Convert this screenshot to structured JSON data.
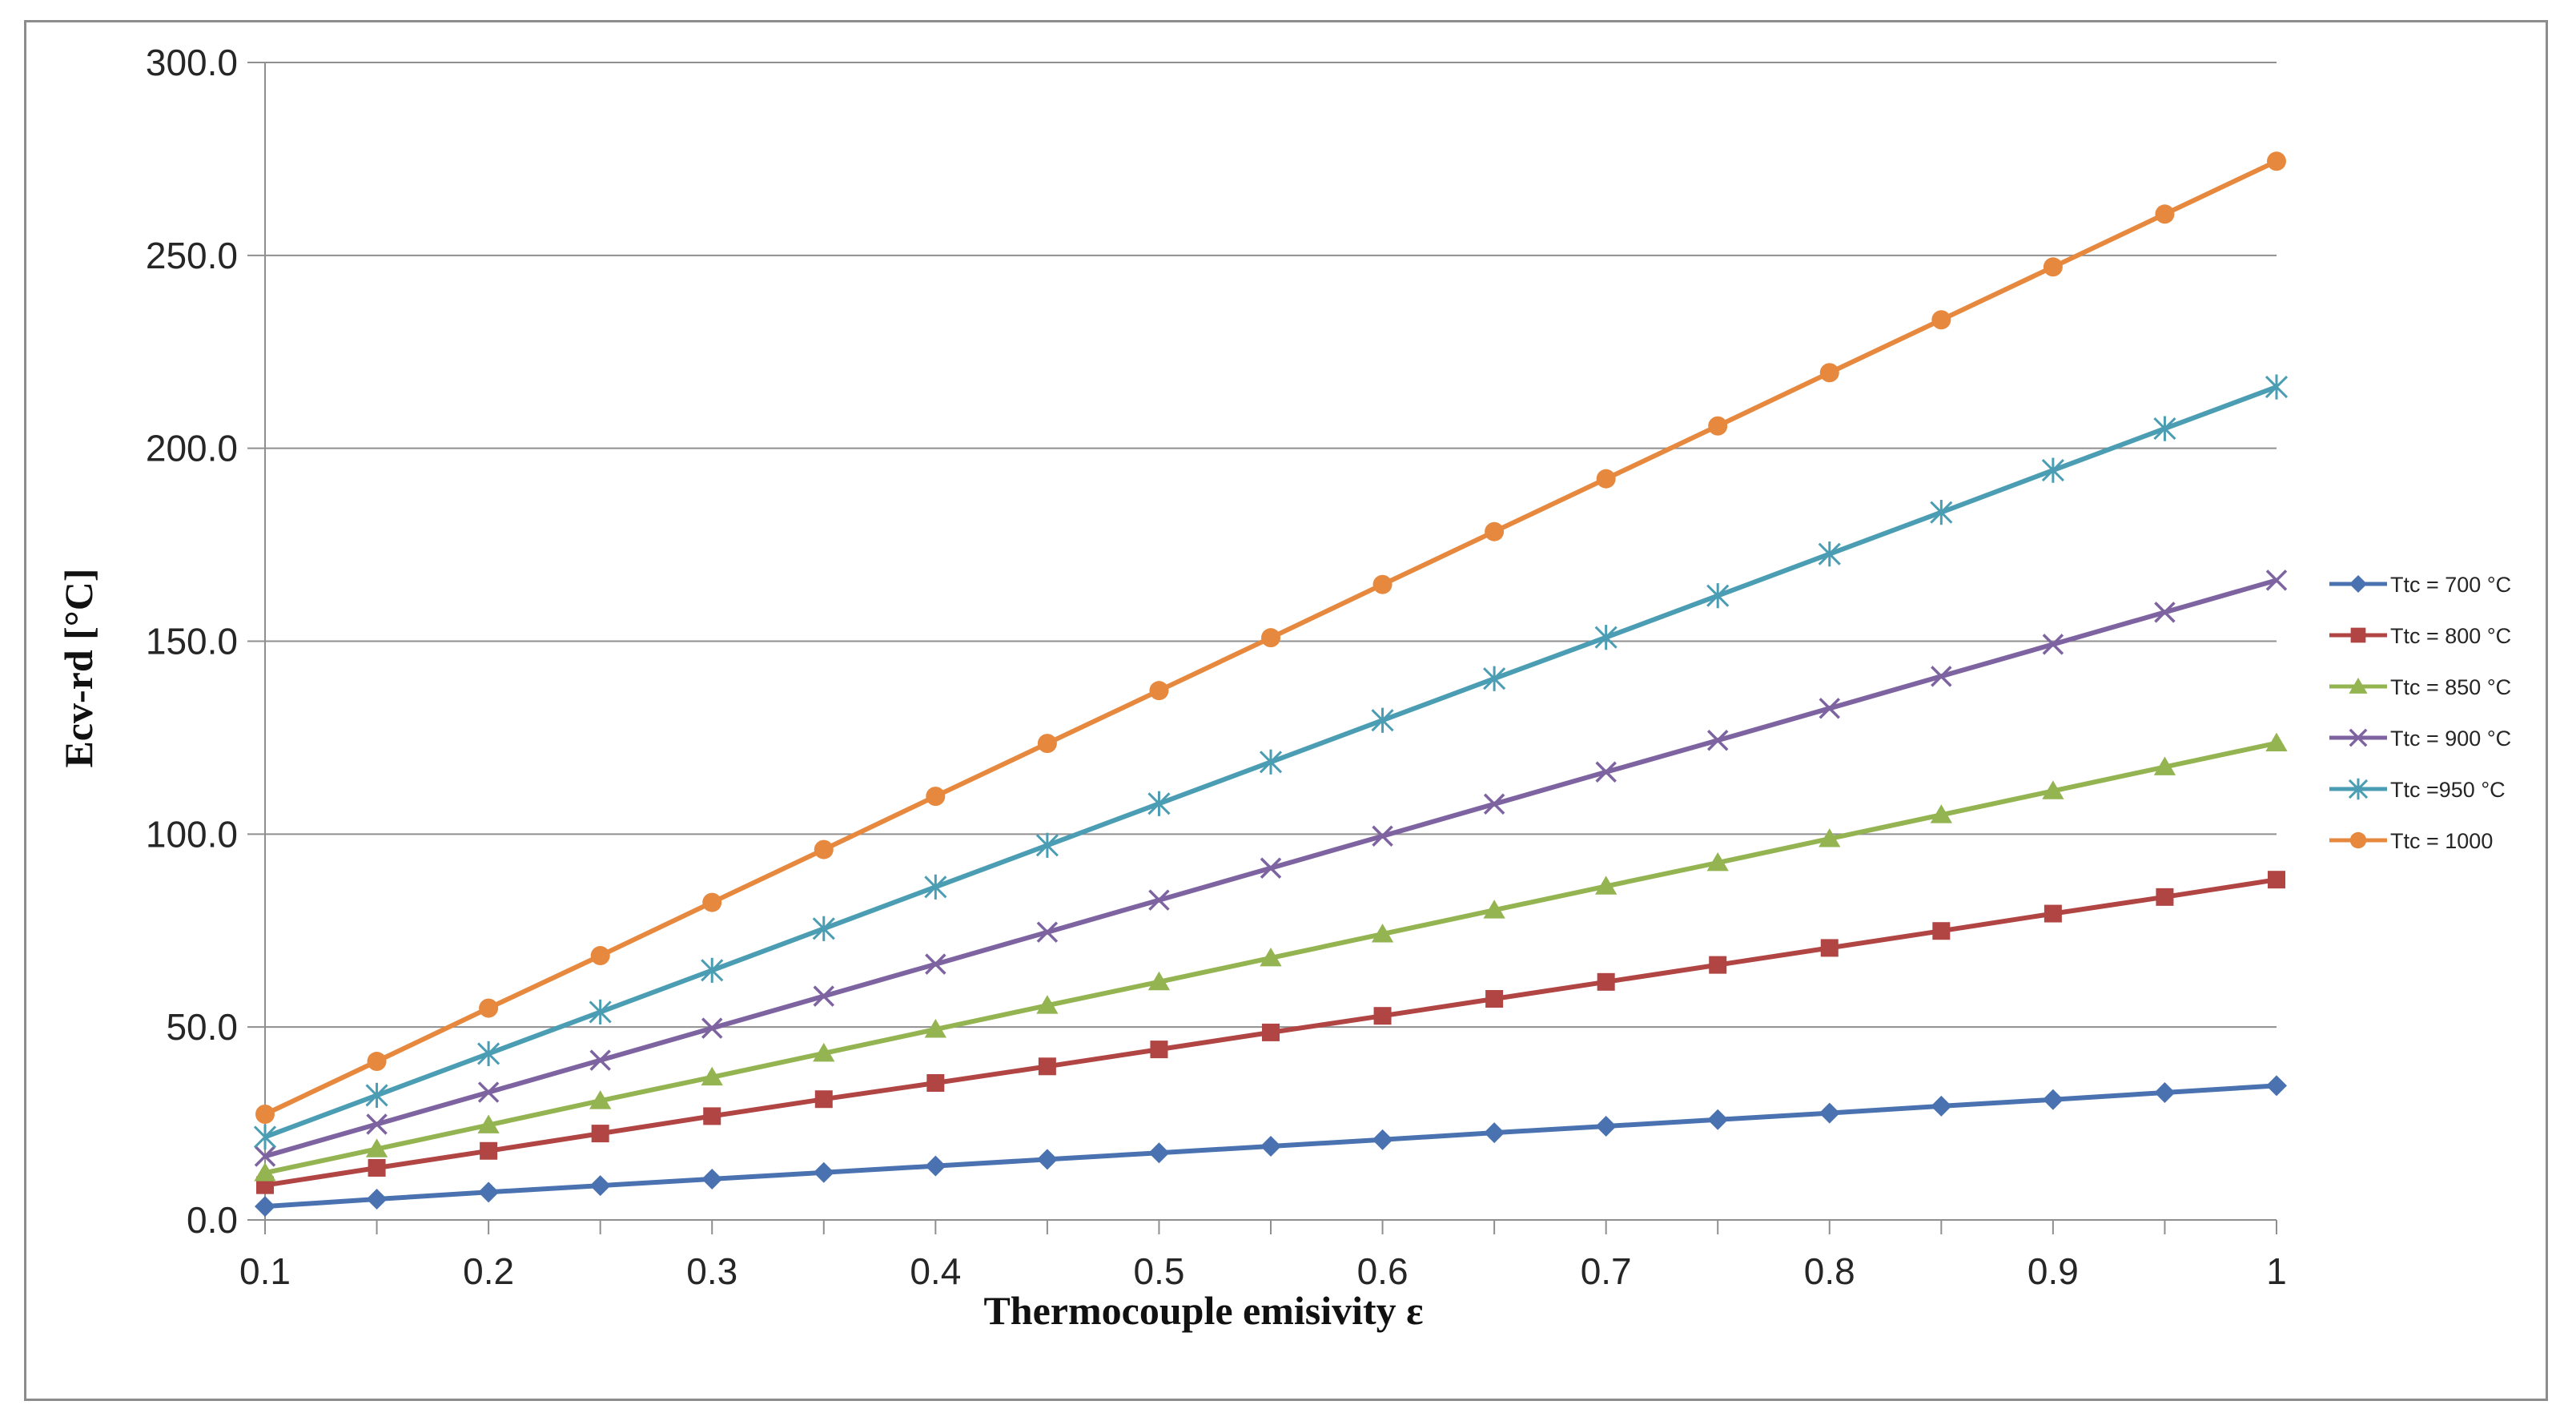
{
  "chart_data": {
    "type": "line",
    "title": "",
    "xlabel": "Thermocouple  emisivity  ε",
    "ylabel": "Ecv-rd [°C]",
    "xlim": [
      0.1,
      1
    ],
    "ylim": [
      0,
      300
    ],
    "grid": true,
    "legend_position": "right",
    "x": [
      0.1,
      0.15,
      0.2,
      0.25,
      0.3,
      0.35,
      0.4,
      0.45,
      0.5,
      0.55,
      0.6,
      0.65,
      0.7,
      0.75,
      0.8,
      0.85,
      0.9,
      0.95,
      1
    ],
    "x_ticks": [
      "0.1",
      "0.2",
      "0.3",
      "0.4",
      "0.5",
      "0.6",
      "0.7",
      "0.8",
      "0.9",
      "1"
    ],
    "x_tick_values": [
      0.1,
      0.2,
      0.3,
      0.4,
      0.5,
      0.6,
      0.7,
      0.8,
      0.9,
      1
    ],
    "y_ticks": [
      "0.0",
      "50.0",
      "100.0",
      "150.0",
      "200.0",
      "250.0",
      "300.0"
    ],
    "y_tick_values": [
      0,
      50,
      100,
      150,
      200,
      250,
      300
    ],
    "series": [
      {
        "name": "Ttc = 700 °C",
        "color": "#4a72b0",
        "marker": "diamond",
        "values": [
          3.5,
          5.4,
          7.2,
          8.9,
          10.6,
          12.3,
          14.0,
          15.7,
          17.4,
          19.1,
          20.8,
          22.6,
          24.3,
          26.0,
          27.7,
          29.5,
          31.2,
          33.0,
          34.8
        ]
      },
      {
        "name": "Ttc = 800 °C",
        "color": "#b14543",
        "marker": "square",
        "values": [
          9.0,
          13.5,
          17.9,
          22.4,
          26.9,
          31.3,
          35.5,
          39.8,
          44.2,
          48.6,
          52.9,
          57.3,
          61.7,
          66.1,
          70.5,
          74.9,
          79.4,
          83.7,
          88.2
        ]
      },
      {
        "name": "Ttc = 850 °C",
        "color": "#93b451",
        "marker": "triangle",
        "values": [
          12.2,
          18.4,
          24.6,
          30.9,
          37.0,
          43.2,
          49.4,
          55.6,
          61.7,
          67.9,
          74.1,
          80.3,
          86.5,
          92.6,
          98.8,
          105.0,
          111.2,
          117.4,
          123.6
        ]
      },
      {
        "name": "Ttc = 900 °C",
        "color": "#7e63a1",
        "marker": "x",
        "values": [
          16.5,
          24.8,
          33.1,
          41.4,
          49.7,
          58.0,
          66.3,
          74.6,
          82.9,
          91.2,
          99.5,
          107.8,
          116.1,
          124.3,
          132.6,
          140.9,
          149.2,
          157.5,
          165.8
        ]
      },
      {
        "name": "Ttc =950 °C",
        "color": "#4a9db3",
        "marker": "star",
        "values": [
          21.5,
          32.3,
          43.1,
          53.9,
          64.7,
          75.5,
          86.3,
          97.1,
          107.9,
          118.7,
          129.5,
          140.3,
          151.0,
          161.8,
          172.6,
          183.4,
          194.3,
          205.1,
          215.9
        ]
      },
      {
        "name": "Ttc = 1000",
        "color": "#e6893f",
        "marker": "circle",
        "values": [
          27.4,
          41.1,
          54.9,
          68.5,
          82.3,
          96.0,
          109.8,
          123.5,
          137.2,
          150.9,
          164.7,
          178.4,
          192.1,
          205.8,
          219.6,
          233.3,
          247.0,
          260.7,
          274.4
        ]
      }
    ]
  }
}
